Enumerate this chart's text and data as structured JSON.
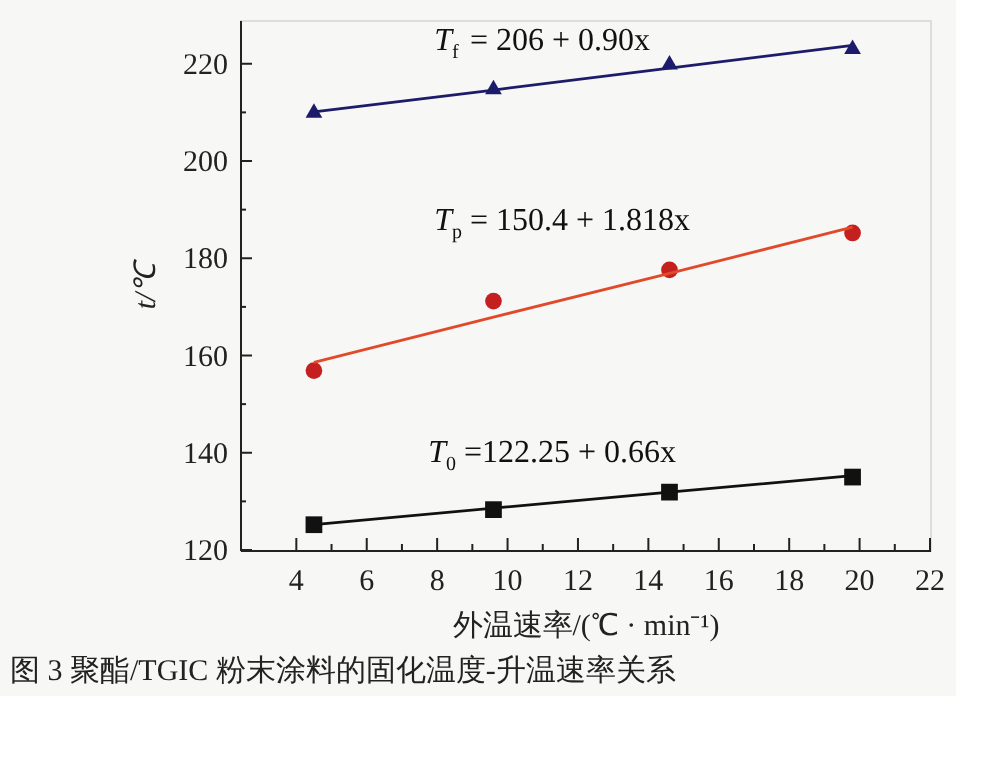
{
  "chart_data": {
    "type": "scatter",
    "xlabel": "外温速率/(℃ · min⁻¹)",
    "ylabel": "t/℃",
    "x": [
      4.5,
      9.6,
      14.6,
      19.8
    ],
    "series": [
      {
        "marker": "triangle",
        "color": "#1c1c6b",
        "values": [
          210.4,
          215.2,
          220.3,
          223.5
        ]
      },
      {
        "marker": "circle",
        "color": "#c42020",
        "values": [
          156.9,
          171.2,
          177.6,
          185.2
        ]
      },
      {
        "marker": "square",
        "color": "#111111",
        "values": [
          125.2,
          128.3,
          131.9,
          135.0
        ]
      },
      {
        "type": "line",
        "marker": "none",
        "color": "#1c1c6b",
        "values": [
          210.1,
          214.6,
          219.1,
          223.8
        ]
      },
      {
        "type": "line",
        "marker": "none",
        "color": "#e04a2a",
        "values": [
          158.6,
          167.9,
          176.9,
          186.4
        ]
      },
      {
        "type": "line",
        "marker": "none",
        "color": "#111111",
        "values": [
          125.2,
          128.6,
          131.9,
          135.3
        ]
      }
    ],
    "xlim": [
      2.4,
      22
    ],
    "xticks": [
      4,
      {
        "value": 5,
        "label": null
      },
      6,
      {
        "value": 7,
        "label": null
      },
      8,
      {
        "value": 9,
        "label": null
      },
      10,
      {
        "value": 11,
        "label": null
      },
      12,
      {
        "value": 13,
        "label": null
      },
      14,
      {
        "value": 15,
        "label": null
      },
      16,
      {
        "value": 17,
        "label": null
      },
      18,
      {
        "value": 19,
        "label": null
      },
      20,
      {
        "value": 21,
        "label": null
      },
      22
    ],
    "ylim": [
      120,
      229
    ],
    "yticks": [
      120,
      {
        "value": 130,
        "label": null
      },
      140,
      {
        "value": 150,
        "label": null
      },
      160,
      {
        "value": 170,
        "label": null
      },
      180,
      {
        "value": 190,
        "label": null
      },
      200,
      {
        "value": 210,
        "label": null
      },
      220
    ],
    "grid": false,
    "annotations": [
      "T$_{f}$ = 206 + 0.90x",
      "T$_{p}$ = 150.4 + 1.818x",
      "T$_{0}$=122.25 + 0.66x",
      "图 3   聚酯/TGIC 粉末涂料的固化温度-升温速率关系"
    ]
  }
}
